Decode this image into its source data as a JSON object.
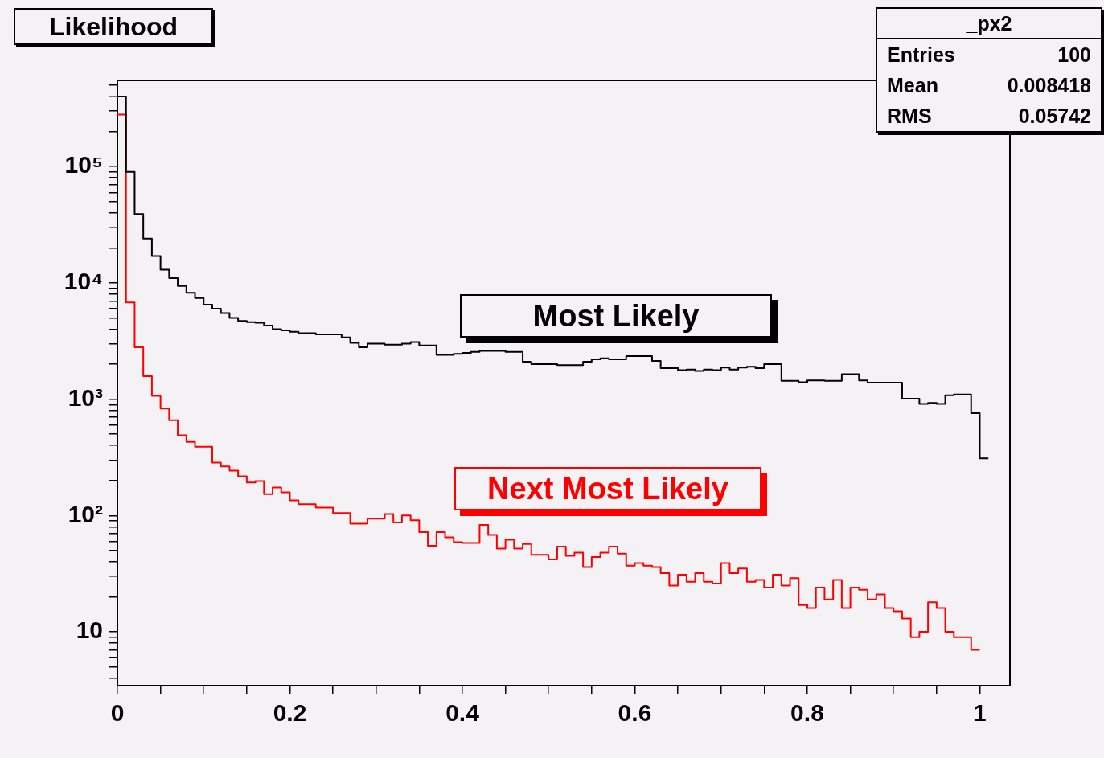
{
  "chart_data": {
    "type": "histogram",
    "title": "Likelihood",
    "annotations": [
      "_px2",
      "Entries 100",
      "Mean 0.008418",
      "RMS 0.05742"
    ],
    "bins": [
      0,
      0.01,
      0.02,
      0.03,
      0.04,
      0.05,
      0.06,
      0.07,
      0.08,
      0.09,
      0.1,
      0.11,
      0.12,
      0.13,
      0.14,
      0.15,
      0.16,
      0.17,
      0.18,
      0.19,
      0.2,
      0.21,
      0.22,
      0.23,
      0.24,
      0.25,
      0.26,
      0.27,
      0.28,
      0.29,
      0.3,
      0.31,
      0.32,
      0.33,
      0.34,
      0.35,
      0.36,
      0.37,
      0.38,
      0.39,
      0.4,
      0.41,
      0.42,
      0.43,
      0.44,
      0.45,
      0.46,
      0.47,
      0.48,
      0.49,
      0.5,
      0.51,
      0.52,
      0.53,
      0.54,
      0.55,
      0.56,
      0.57,
      0.58,
      0.59,
      0.6,
      0.61,
      0.62,
      0.63,
      0.64,
      0.65,
      0.66,
      0.67,
      0.68,
      0.69,
      0.7,
      0.71,
      0.72,
      0.73,
      0.74,
      0.75,
      0.76,
      0.77,
      0.78,
      0.79,
      0.8,
      0.81,
      0.82,
      0.83,
      0.84,
      0.85,
      0.86,
      0.87,
      0.88,
      0.89,
      0.9,
      0.91,
      0.92,
      0.93,
      0.94,
      0.95,
      0.96,
      0.97,
      0.98,
      0.99,
      1,
      1.01
    ],
    "series": [
      {
        "name": "Most Likely",
        "color": "#000000",
        "values": [
          400000,
          90000,
          39000,
          24000,
          17000,
          13000,
          11000,
          9400,
          8200,
          7400,
          6500,
          6000,
          5500,
          5000,
          4700,
          4600,
          4550,
          4300,
          4000,
          3900,
          3800,
          3700,
          3700,
          3600,
          3600,
          3600,
          3400,
          3050,
          2800,
          3000,
          3000,
          2950,
          2950,
          3000,
          3100,
          2900,
          2900,
          2400,
          2400,
          2450,
          2500,
          2550,
          2600,
          2600,
          2600,
          2550,
          2550,
          2100,
          2000,
          2000,
          2000,
          1960,
          1960,
          1960,
          2100,
          2200,
          2250,
          2200,
          2200,
          2350,
          2350,
          2350,
          2130,
          1850,
          1850,
          1780,
          1800,
          1750,
          1800,
          1780,
          1870,
          1800,
          1870,
          1900,
          1850,
          2000,
          2000,
          1440,
          1440,
          1400,
          1450,
          1450,
          1440,
          1440,
          1640,
          1640,
          1450,
          1390,
          1390,
          1390,
          1390,
          1010,
          1010,
          910,
          930,
          910,
          1080,
          1100,
          1100,
          760,
          310
        ]
      },
      {
        "name": "Next Most Likely",
        "color": "#ff0000",
        "bins": [
          0,
          0.01,
          0.02,
          0.03,
          0.04,
          0.05,
          0.06,
          0.07,
          0.08,
          0.09,
          0.1,
          0.11,
          0.12,
          0.13,
          0.14,
          0.15,
          0.16,
          0.17,
          0.18,
          0.19,
          0.2,
          0.21,
          0.22,
          0.23,
          0.24,
          0.25,
          0.26,
          0.27,
          0.28,
          0.29,
          0.3,
          0.31,
          0.32,
          0.33,
          0.34,
          0.35,
          0.36,
          0.37,
          0.38,
          0.39,
          0.4,
          0.41,
          0.42,
          0.43,
          0.44,
          0.45,
          0.46,
          0.47,
          0.48,
          0.49,
          0.5,
          0.51,
          0.52,
          0.53,
          0.54,
          0.55,
          0.56,
          0.57,
          0.58,
          0.59,
          0.6,
          0.61,
          0.62,
          0.63,
          0.64,
          0.65,
          0.66,
          0.67,
          0.68,
          0.69,
          0.7,
          0.71,
          0.72,
          0.73,
          0.74,
          0.75,
          0.76,
          0.77,
          0.78,
          0.79,
          0.8,
          0.81,
          0.82,
          0.83,
          0.84,
          0.85,
          0.86,
          0.87,
          0.88,
          0.89,
          0.9,
          0.91,
          0.92,
          0.93,
          0.94,
          0.95,
          0.96,
          0.97,
          0.98,
          0.99,
          1
        ],
        "values": [
          280000,
          6800,
          2800,
          1580,
          1070,
          830,
          660,
          490,
          430,
          390,
          390,
          285,
          264,
          243,
          218,
          192,
          198,
          153,
          174,
          158,
          135,
          125,
          125,
          117,
          117,
          105,
          105,
          85,
          85,
          94,
          94,
          103,
          87,
          100,
          91,
          72,
          55,
          72,
          65,
          59,
          58,
          58,
          83,
          68,
          52,
          62,
          52,
          57,
          46,
          46,
          42,
          54,
          45,
          48,
          36,
          44,
          48,
          54,
          47,
          37,
          39,
          37,
          36,
          32,
          25,
          31,
          27,
          32,
          27,
          26,
          39,
          32,
          35,
          27,
          28,
          24,
          31,
          25,
          29,
          17,
          16,
          24,
          19,
          28,
          16,
          24,
          23,
          19,
          21,
          16,
          15,
          13,
          9,
          10,
          18,
          16,
          10,
          9,
          9,
          7
        ]
      }
    ],
    "log": "y",
    "grid": false,
    "legend": false,
    "xlim": [
      0,
      1.035
    ],
    "xticks": [
      {
        "value": 0,
        "label": "0"
      },
      {
        "value": 0.05,
        "label": null
      },
      {
        "value": 0.1,
        "label": null
      },
      {
        "value": 0.15,
        "label": null
      },
      {
        "value": 0.2,
        "label": "0.2"
      },
      {
        "value": 0.25,
        "label": null
      },
      {
        "value": 0.3,
        "label": null
      },
      {
        "value": 0.35,
        "label": null
      },
      {
        "value": 0.4,
        "label": "0.4"
      },
      {
        "value": 0.45,
        "label": null
      },
      {
        "value": 0.5,
        "label": null
      },
      {
        "value": 0.55,
        "label": null
      },
      {
        "value": 0.6,
        "label": "0.6"
      },
      {
        "value": 0.65,
        "label": null
      },
      {
        "value": 0.7,
        "label": null
      },
      {
        "value": 0.75,
        "label": null
      },
      {
        "value": 0.8,
        "label": "0.8"
      },
      {
        "value": 0.85,
        "label": null
      },
      {
        "value": 0.9,
        "label": null
      },
      {
        "value": 0.95,
        "label": null
      },
      {
        "value": 1,
        "label": "1"
      }
    ],
    "ylim": [
      3.45,
      550000
    ],
    "yticks": [
      {
        "value": 4,
        "label": null
      },
      {
        "value": 5,
        "label": null
      },
      {
        "value": 6,
        "label": null
      },
      {
        "value": 7,
        "label": null
      },
      {
        "value": 8,
        "label": null
      },
      {
        "value": 9,
        "label": null
      },
      10,
      {
        "value": 20,
        "label": null
      },
      {
        "value": 30,
        "label": null
      },
      {
        "value": 40,
        "label": null
      },
      {
        "value": 50,
        "label": null
      },
      {
        "value": 60,
        "label": null
      },
      {
        "value": 70,
        "label": null
      },
      {
        "value": 80,
        "label": null
      },
      {
        "value": 90,
        "label": null
      },
      {
        "value": 100,
        "label": "10²"
      },
      {
        "value": 200,
        "label": null
      },
      {
        "value": 300,
        "label": null
      },
      {
        "value": 400,
        "label": null
      },
      {
        "value": 500,
        "label": null
      },
      {
        "value": 600,
        "label": null
      },
      {
        "value": 700,
        "label": null
      },
      {
        "value": 800,
        "label": null
      },
      {
        "value": 900,
        "label": null
      },
      {
        "value": 1000,
        "label": "10³"
      },
      {
        "value": 2000,
        "label": null
      },
      {
        "value": 3000,
        "label": null
      },
      {
        "value": 4000,
        "label": null
      },
      {
        "value": 5000,
        "label": null
      },
      {
        "value": 6000,
        "label": null
      },
      {
        "value": 7000,
        "label": null
      },
      {
        "value": 8000,
        "label": null
      },
      {
        "value": 9000,
        "label": null
      },
      {
        "value": 10000,
        "label": "10⁴"
      },
      {
        "value": 20000,
        "label": null
      },
      {
        "value": 30000,
        "label": null
      },
      {
        "value": 40000,
        "label": null
      },
      {
        "value": 50000,
        "label": null
      },
      {
        "value": 60000,
        "label": null
      },
      {
        "value": 70000,
        "label": null
      },
      {
        "value": 80000,
        "label": null
      },
      {
        "value": 90000,
        "label": null
      },
      {
        "value": 100000,
        "label": "10⁵"
      },
      {
        "value": 200000,
        "label": null
      },
      {
        "value": 300000,
        "label": null
      },
      {
        "value": 400000,
        "label": null
      },
      {
        "value": 500000,
        "label": null
      }
    ]
  }
}
